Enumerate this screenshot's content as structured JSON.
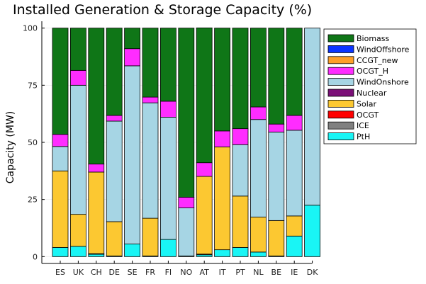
{
  "chart_data": {
    "type": "bar",
    "stacked": true,
    "title": "Installed Generation & Storage Capacity (%)",
    "xlabel": "",
    "ylabel": "Capacity (MW)",
    "ylim": [
      -3,
      103
    ],
    "yticks": [
      0,
      25,
      50,
      75,
      100
    ],
    "grid": true,
    "legend_position": "top-right",
    "categories": [
      "ES",
      "UK",
      "CH",
      "DE",
      "SE",
      "FR",
      "FI",
      "NO",
      "AT",
      "IT",
      "PT",
      "NL",
      "BE",
      "IE",
      "DK"
    ],
    "legend_order": [
      "Biomass",
      "WindOffshore",
      "CCGT_new",
      "OCGT_H",
      "WindOnshore",
      "Nuclear",
      "Solar",
      "OCGT",
      "ICE",
      "PtH"
    ],
    "series": [
      {
        "name": "PtH",
        "color": "#19f5f5",
        "values": [
          4,
          4.5,
          1,
          0.3,
          5.5,
          0.3,
          7.5,
          0.3,
          0.8,
          3,
          4,
          2,
          0.3,
          9,
          22.5
        ]
      },
      {
        "name": "ICE",
        "color": "#808080",
        "values": [
          0,
          0,
          0.3,
          0,
          0,
          0,
          0,
          0,
          0.3,
          0,
          0,
          0,
          0,
          0,
          0
        ]
      },
      {
        "name": "OCGT",
        "color": "#ff0000",
        "values": [
          0,
          0,
          0,
          0,
          0,
          0,
          0,
          0,
          0,
          0,
          0,
          0,
          0,
          0,
          0
        ]
      },
      {
        "name": "Solar",
        "color": "#fcc831",
        "values": [
          33.5,
          14,
          35.7,
          15,
          0,
          16.5,
          0,
          0,
          34,
          45,
          22.5,
          15.3,
          15.5,
          8.8,
          0
        ]
      },
      {
        "name": "Nuclear",
        "color": "#7b0f78",
        "values": [
          0,
          0,
          0,
          0,
          0,
          0,
          0,
          0,
          0,
          0,
          0,
          0,
          0,
          0,
          0
        ]
      },
      {
        "name": "WindOnshore",
        "color": "#a6d5e4",
        "values": [
          10.7,
          56.5,
          0,
          44,
          78,
          50.5,
          53.5,
          21,
          0,
          0,
          22.5,
          42.7,
          38.7,
          37.5,
          77.5
        ]
      },
      {
        "name": "OCGT_H",
        "color": "#ff2cff",
        "values": [
          5.3,
          6.5,
          3.5,
          2.5,
          7.5,
          2.5,
          7,
          4.7,
          6,
          7,
          7,
          5.5,
          3.5,
          6.5,
          0
        ]
      },
      {
        "name": "CCGT_new",
        "color": "#ff9f27",
        "values": [
          0,
          0,
          0,
          0,
          0,
          0,
          0,
          0,
          0,
          0,
          0,
          0,
          0,
          0,
          0
        ]
      },
      {
        "name": "WindOffshore",
        "color": "#0b35ff",
        "values": [
          0,
          0,
          0,
          0,
          0,
          0,
          0,
          0,
          0,
          0,
          0,
          0,
          0,
          0,
          0
        ]
      },
      {
        "name": "Biomass",
        "color": "#0f7617",
        "values": [
          46.5,
          18.5,
          59.5,
          38.2,
          9,
          30.2,
          32,
          74,
          59,
          45,
          44,
          34.5,
          42,
          38.2,
          0
        ]
      }
    ]
  }
}
